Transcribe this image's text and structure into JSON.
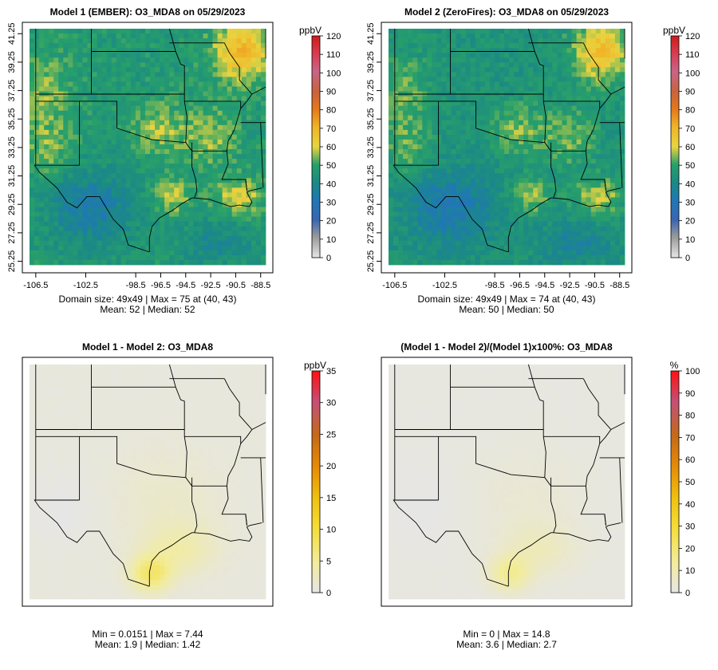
{
  "chart_data": [
    {
      "type": "heatmap",
      "title": "Model 1 (EMBER): O3_MDA8 on 05/29/2023",
      "unit": "ppbV",
      "colorbar_ticks": [
        "120",
        "110",
        "100",
        "90",
        "80",
        "70",
        "60",
        "50",
        "40",
        "30",
        "20",
        "10",
        "0"
      ],
      "colorbar_range": [
        0,
        120
      ],
      "xticks": [
        "-106.5",
        "-102.5",
        "-98.5",
        "-96.5",
        "-94.5",
        "-92.5",
        "-90.5",
        "-88.5"
      ],
      "yticks": [
        "41.25",
        "39.25",
        "37.25",
        "35.25",
        "33.25",
        "31.25",
        "29.25",
        "27.25",
        "25.25"
      ],
      "stats_line1": "Domain size: 49x49 | Max = 75 at (40, 43)",
      "stats_line2": "Mean: 52 |  Median: 52",
      "field": {
        "background": 48,
        "mean": 52,
        "median": 52,
        "max": 75
      }
    },
    {
      "type": "heatmap",
      "title": "Model 2 (ZeroFires): O3_MDA8 on 05/29/2023",
      "unit": "ppbV",
      "colorbar_ticks": [
        "120",
        "110",
        "100",
        "90",
        "80",
        "70",
        "60",
        "50",
        "40",
        "30",
        "20",
        "10",
        "0"
      ],
      "colorbar_range": [
        0,
        120
      ],
      "xticks": [
        "-106.5",
        "-102.5",
        "-98.5",
        "-96.5",
        "-94.5",
        "-92.5",
        "-90.5",
        "-88.5"
      ],
      "yticks": [
        "41.25",
        "39.25",
        "37.25",
        "35.25",
        "33.25",
        "31.25",
        "29.25",
        "27.25",
        "25.25"
      ],
      "stats_line1": "Domain size: 49x49 | Max = 74 at (40, 43)",
      "stats_line2": "Mean: 50 |  Median: 50",
      "field": {
        "background": 46,
        "mean": 50,
        "median": 50,
        "max": 74
      }
    },
    {
      "type": "heatmap",
      "title": "Model 1 - Model 2: O3_MDA8",
      "unit": "ppbV",
      "colorbar_ticks": [
        "35",
        "30",
        "25",
        "20",
        "15",
        "10",
        "5",
        "0"
      ],
      "colorbar_range": [
        0,
        35
      ],
      "stats_line1": "Min = 0.0151 | Max = 7.44",
      "stats_line2": "Mean: 1.9 |  Median: 1.42",
      "field": {
        "min": 0.0151,
        "max": 7.44,
        "mean": 1.9,
        "median": 1.42
      }
    },
    {
      "type": "heatmap",
      "title": "(Model 1 - Model 2)/(Model 1)x100%: O3_MDA8",
      "unit": "%",
      "colorbar_ticks": [
        "100",
        "90",
        "80",
        "70",
        "60",
        "50",
        "40",
        "30",
        "20",
        "10",
        "0"
      ],
      "colorbar_range": [
        0,
        100
      ],
      "stats_line1": "Min = 0 | Max = 14.8",
      "stats_line2": "Mean: 3.6 |  Median: 2.7",
      "field": {
        "min": 0,
        "max": 14.8,
        "mean": 3.6,
        "median": 2.7
      }
    }
  ]
}
